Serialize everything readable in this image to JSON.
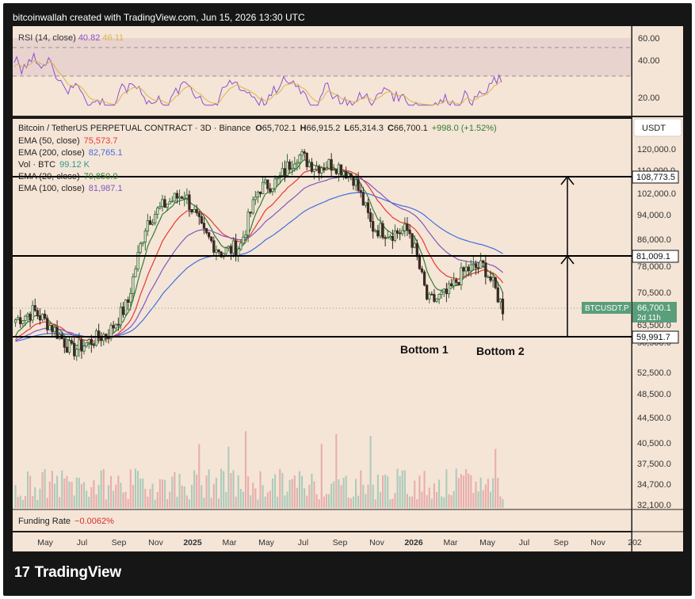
{
  "header": {
    "credit": "bitcoinwallah created with TradingView.com, Jun 15, 2026 13:30 UTC"
  },
  "footer": {
    "brand": "TradingView",
    "brand_mark": "17"
  },
  "colors": {
    "background": "#f5e5d6",
    "rsi_band": "#e8d3cf",
    "rsi_line": "#8d4fd2",
    "rsi_ma": "#d9b64a",
    "ema50": "#e53935",
    "ema200": "#3f6fe0",
    "ema20": "#2e7d32",
    "ema100": "#7e57c2",
    "candle_up": "#2e6b3a",
    "candle_down": "#3a2a24",
    "volume": "#9fc7b6",
    "volume_down": "#e4a5a6",
    "price_label_bg": "#5a9e7a"
  },
  "rsi": {
    "title": "RSI (14, close)",
    "value": "40.82",
    "ma_value": "46.11",
    "ticks": [
      "60.00",
      "40.00",
      "20.00"
    ]
  },
  "legend": {
    "symbol_line": "Bitcoin / TetherUS PERPETUAL CONTRACT · 3D · Binance",
    "ohlc": [
      {
        "k": "O",
        "v": "65,702.1"
      },
      {
        "k": "H",
        "v": "66,915.2"
      },
      {
        "k": "L",
        "v": "65,314.3"
      },
      {
        "k": "C",
        "v": "66,700.1"
      }
    ],
    "change": "+998.0 (+1.52%)",
    "rows": [
      {
        "label": "EMA (50, close)",
        "value": "75,573.7",
        "color": "#e53935"
      },
      {
        "label": "EMA (200, close)",
        "value": "82,765.1",
        "color": "#3f6fe0"
      },
      {
        "label": "Vol · BTC",
        "value": "99.12 K",
        "color": "#2a9d8f"
      },
      {
        "label": "EMA (20, close)",
        "value": "70,850.0",
        "color": "#2e7d32"
      },
      {
        "label": "EMA (100, close)",
        "value": "81,987.1",
        "color": "#7e57c2"
      }
    ]
  },
  "funding": {
    "label": "Funding Rate",
    "value": "−0.0062%"
  },
  "currency": "USDT",
  "annotations": {
    "bottom1": "Bottom 1",
    "bottom2": "Bottom 2"
  },
  "price_labels": {
    "symbol_tag": "BTCUSDT.P",
    "last": "66,700.1",
    "countdown": "2d 11h"
  },
  "chart_data": {
    "type": "candlestick",
    "title": "Bitcoin / TetherUS PERPETUAL CONTRACT · 3D · Binance",
    "x_ticks": [
      "May",
      "Jul",
      "Sep",
      "Nov",
      "2025",
      "Mar",
      "May",
      "Jul",
      "Sep",
      "Nov",
      "2026",
      "Mar",
      "May",
      "Jul",
      "Sep",
      "Nov",
      "202"
    ],
    "y_ticks": [
      "120,000.0",
      "110,000.0",
      "102,000.0",
      "94,000.0",
      "86,000.0",
      "78,000.0",
      "70,500.0",
      "63,500.0",
      "58,500.0",
      "52,500.0",
      "48,500.0",
      "44,500.0",
      "40,500.0",
      "37,500.0",
      "34,700.0",
      "32,100.0"
    ],
    "horizontal_levels": [
      "108,773.5",
      "81,009.1",
      "59,991.7"
    ],
    "approx_close_path": [
      {
        "x": "2024-04",
        "y": 64000
      },
      {
        "x": "2024-05",
        "y": 66000
      },
      {
        "x": "2024-06",
        "y": 62000
      },
      {
        "x": "2024-07",
        "y": 57000
      },
      {
        "x": "2024-08",
        "y": 59000
      },
      {
        "x": "2024-09",
        "y": 61000
      },
      {
        "x": "2024-10",
        "y": 68000
      },
      {
        "x": "2024-11",
        "y": 92000
      },
      {
        "x": "2024-12",
        "y": 98000
      },
      {
        "x": "2025-01",
        "y": 102000
      },
      {
        "x": "2025-02",
        "y": 88000
      },
      {
        "x": "2025-03",
        "y": 82000
      },
      {
        "x": "2025-04",
        "y": 84000
      },
      {
        "x": "2025-05",
        "y": 104000
      },
      {
        "x": "2025-06",
        "y": 107000
      },
      {
        "x": "2025-07",
        "y": 118000
      },
      {
        "x": "2025-08",
        "y": 113000
      },
      {
        "x": "2025-09",
        "y": 114000
      },
      {
        "x": "2025-10",
        "y": 109000
      },
      {
        "x": "2025-11",
        "y": 90000
      },
      {
        "x": "2025-12",
        "y": 88000
      },
      {
        "x": "2026-01",
        "y": 89000
      },
      {
        "x": "2026-02",
        "y": 68000
      },
      {
        "x": "2026-03",
        "y": 70000
      },
      {
        "x": "2026-04",
        "y": 77000
      },
      {
        "x": "2026-05",
        "y": 78000
      },
      {
        "x": "2026-06",
        "y": 66700
      }
    ]
  }
}
